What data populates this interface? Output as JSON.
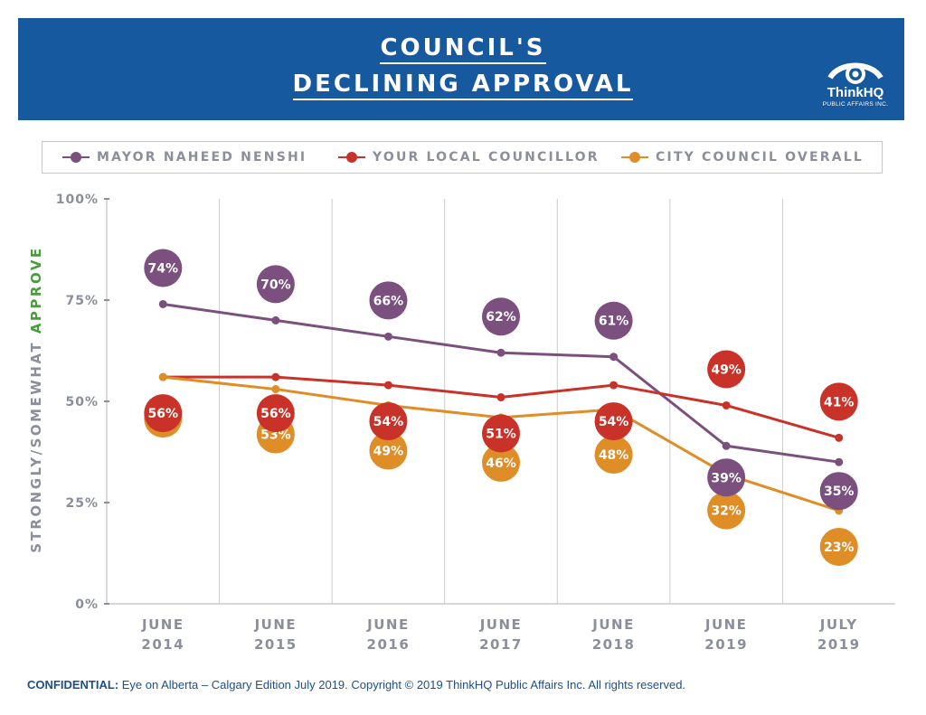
{
  "header": {
    "title_line1": "COUNCIL'S",
    "title_line2": "DECLINING APPROVAL",
    "logo_text": "ThinkHQ",
    "logo_subtext": "PUBLIC AFFAIRS INC."
  },
  "footer": {
    "label": "CONFIDENTIAL:",
    "text": "Eye on Alberta – Calgary Edition July 2019.  Copyright © 2019 ThinkHQ Public Affairs Inc. All rights reserved."
  },
  "colors": {
    "banner": "#16599f",
    "mayor": "#7b4f7e",
    "councillor": "#c93229",
    "council": "#df8d26",
    "grid": "#c8cbd0",
    "axis_text": "#8a8f9b",
    "accent": "#4a9b3c"
  },
  "chart_data": {
    "type": "line",
    "title": "COUNCIL'S DECLINING APPROVAL",
    "ylabel_main": "STRONGLY/SOMEWHAT",
    "ylabel_accent": "APPROVE",
    "xlabel": "",
    "ylim": [
      0,
      100
    ],
    "yticks": [
      "0%",
      "25%",
      "50%",
      "75%",
      "100%"
    ],
    "ytick_values": [
      0,
      25,
      50,
      75,
      100
    ],
    "categories": [
      [
        "JUNE",
        "2014"
      ],
      [
        "JUNE",
        "2015"
      ],
      [
        "JUNE",
        "2016"
      ],
      [
        "JUNE",
        "2017"
      ],
      [
        "JUNE",
        "2018"
      ],
      [
        "JUNE",
        "2019"
      ],
      [
        "JULY",
        "2019"
      ]
    ],
    "grid": "vertical",
    "legend_position": "top",
    "series": [
      {
        "name": "MAYOR NAHEED NENSHI",
        "color": "#7b4f7e",
        "values": [
          74,
          70,
          66,
          62,
          61,
          39,
          35
        ],
        "labels": [
          "74%",
          "70%",
          "66%",
          "62%",
          "61%",
          "39%",
          "35%"
        ]
      },
      {
        "name": "YOUR LOCAL COUNCILLOR",
        "color": "#c93229",
        "values": [
          56,
          56,
          54,
          51,
          54,
          49,
          41
        ],
        "labels": [
          "56%",
          "56%",
          "54%",
          "51%",
          "54%",
          "49%",
          "41%"
        ]
      },
      {
        "name": "CITY COUNCIL OVERALL",
        "color": "#df8d26",
        "values": [
          56,
          53,
          49,
          46,
          48,
          32,
          23
        ],
        "labels": [
          "",
          "53%",
          "49%",
          "46%",
          "48%",
          "32%",
          "23%"
        ]
      }
    ]
  }
}
